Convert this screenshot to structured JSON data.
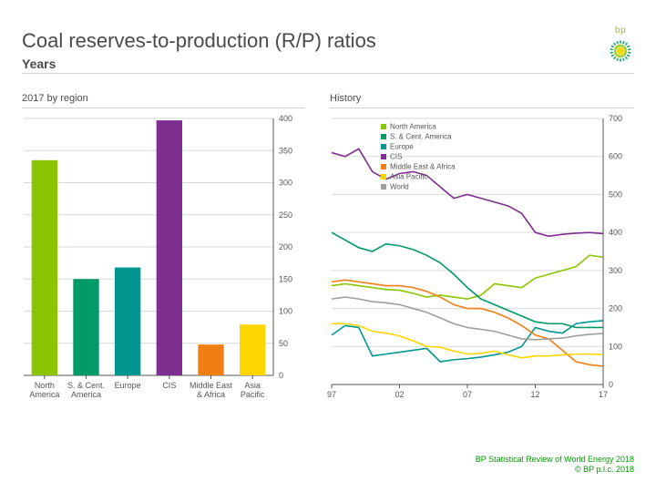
{
  "title": "Coal reserves-to-production (R/P) ratios",
  "subtitle": "Years",
  "logo_text": "bp",
  "bar_chart": {
    "label": "2017 by region",
    "type": "bar",
    "categories": [
      "North\nAmerica",
      "S. & Cent.\nAmerica",
      "Europe",
      "CIS",
      "Middle East\n& Africa",
      "Asia\nPacific"
    ],
    "values": [
      335,
      150,
      168,
      397,
      48,
      79
    ],
    "bar_colors": [
      "#8bc400",
      "#009a66",
      "#00968f",
      "#7e2e8e",
      "#f07f13",
      "#ffd600"
    ],
    "ylim": [
      0,
      400
    ],
    "ytick_step": 50,
    "label_fontsize": 9,
    "background_color": "#ffffff",
    "grid_color": "#d9d9d9",
    "bar_width": 0.62,
    "axis_color": "#555555"
  },
  "line_chart": {
    "label": "History",
    "type": "line",
    "x_labels": [
      "97",
      "02",
      "07",
      "12",
      "17"
    ],
    "xlim": [
      1997,
      2017
    ],
    "ylim": [
      0,
      700
    ],
    "ytick_step": 100,
    "label_fontsize": 9,
    "background_color": "#ffffff",
    "grid_color": "#d9d9d9",
    "axis_color": "#555555",
    "line_width": 1.6,
    "legend": {
      "position": "top-left",
      "fontsize": 8,
      "marker_size": 6
    },
    "series": [
      {
        "name": "North America",
        "color": "#8bc400",
        "x": [
          1997,
          1998,
          1999,
          2000,
          2001,
          2002,
          2003,
          2004,
          2005,
          2006,
          2007,
          2008,
          2009,
          2010,
          2011,
          2012,
          2013,
          2014,
          2015,
          2016,
          2017
        ],
        "y": [
          260,
          265,
          260,
          255,
          250,
          248,
          240,
          230,
          235,
          230,
          225,
          235,
          265,
          260,
          255,
          280,
          290,
          300,
          310,
          340,
          335
        ]
      },
      {
        "name": "S. & Cent. America",
        "color": "#009a66",
        "x": [
          1997,
          1998,
          1999,
          2000,
          2001,
          2002,
          2003,
          2004,
          2005,
          2006,
          2007,
          2008,
          2009,
          2010,
          2011,
          2012,
          2013,
          2014,
          2015,
          2016,
          2017
        ],
        "y": [
          400,
          380,
          360,
          350,
          370,
          365,
          355,
          340,
          320,
          290,
          255,
          225,
          210,
          195,
          180,
          165,
          160,
          160,
          150,
          150,
          150
        ]
      },
      {
        "name": "Europe",
        "color": "#00968f",
        "x": [
          1997,
          1998,
          1999,
          2000,
          2001,
          2002,
          2003,
          2004,
          2005,
          2006,
          2007,
          2008,
          2009,
          2010,
          2011,
          2012,
          2013,
          2014,
          2015,
          2016,
          2017
        ],
        "y": [
          130,
          155,
          150,
          75,
          80,
          85,
          90,
          95,
          60,
          65,
          68,
          72,
          78,
          85,
          100,
          150,
          140,
          135,
          160,
          165,
          168
        ]
      },
      {
        "name": "CIS",
        "color": "#7e2e8e",
        "x": [
          1997,
          1998,
          1999,
          2000,
          2001,
          2002,
          2003,
          2004,
          2005,
          2006,
          2007,
          2008,
          2009,
          2010,
          2011,
          2012,
          2013,
          2014,
          2015,
          2016,
          2017
        ],
        "y": [
          610,
          600,
          620,
          560,
          540,
          555,
          560,
          550,
          520,
          490,
          500,
          490,
          480,
          470,
          450,
          400,
          390,
          395,
          398,
          400,
          397
        ]
      },
      {
        "name": "Middle East & Africa",
        "color": "#f07f13",
        "x": [
          1997,
          1998,
          1999,
          2000,
          2001,
          2002,
          2003,
          2004,
          2005,
          2006,
          2007,
          2008,
          2009,
          2010,
          2011,
          2012,
          2013,
          2014,
          2015,
          2016,
          2017
        ],
        "y": [
          270,
          275,
          270,
          265,
          260,
          260,
          255,
          245,
          230,
          210,
          200,
          200,
          190,
          175,
          155,
          130,
          120,
          90,
          60,
          52,
          48
        ]
      },
      {
        "name": "Asia Pacific",
        "color": "#ffd600",
        "x": [
          1997,
          1998,
          1999,
          2000,
          2001,
          2002,
          2003,
          2004,
          2005,
          2006,
          2007,
          2008,
          2009,
          2010,
          2011,
          2012,
          2013,
          2014,
          2015,
          2016,
          2017
        ],
        "y": [
          160,
          160,
          155,
          140,
          135,
          128,
          115,
          100,
          98,
          88,
          80,
          82,
          88,
          78,
          70,
          75,
          75,
          78,
          80,
          80,
          79
        ]
      },
      {
        "name": "World",
        "color": "#9e9e9e",
        "x": [
          1997,
          1998,
          1999,
          2000,
          2001,
          2002,
          2003,
          2004,
          2005,
          2006,
          2007,
          2008,
          2009,
          2010,
          2011,
          2012,
          2013,
          2014,
          2015,
          2016,
          2017
        ],
        "y": [
          225,
          230,
          225,
          218,
          215,
          210,
          200,
          190,
          175,
          160,
          150,
          145,
          140,
          130,
          120,
          118,
          120,
          122,
          128,
          132,
          134
        ]
      }
    ]
  },
  "footer_line1": "BP Statistical Review of World Energy 2018",
  "footer_line2": "© BP p.l.c. 2018"
}
